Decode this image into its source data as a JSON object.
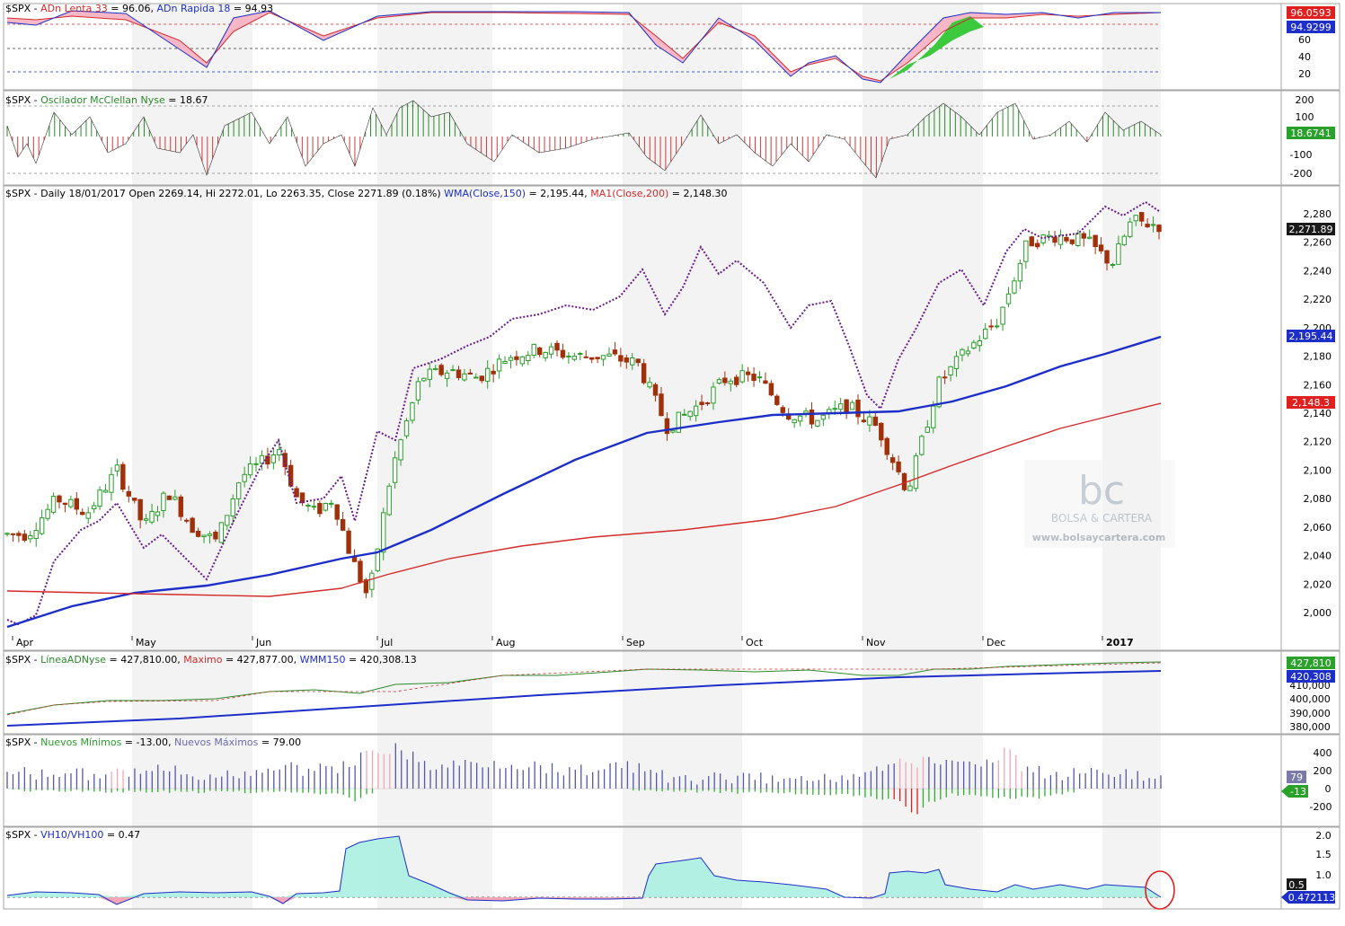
{
  "colors": {
    "bg": "#ffffff",
    "frame": "#a6a6a6",
    "shade": "#f3f3f3",
    "up_candle": "#2a9d2a",
    "down_candle": "#a0300a",
    "wma": "#1d2fc8",
    "ma200": "#d42a2a",
    "mcclellan_up": "#2a8a2a",
    "mcclellan_down": "#d03a3a",
    "adn_fill_red": "#f7b7c6",
    "adn_fill_green": "#3dc93d",
    "vh_fill": "#a6efe0",
    "new_highs": "#5555aa",
    "new_lows": "#33aa33",
    "price_badge": "#1a1a1a",
    "red_badge": "#e01f1f",
    "blue_badge": "#1d2fc8",
    "green_badge": "#2aa12a",
    "purple_line": "#6a1a8a",
    "highlight_circle": "#e02020"
  },
  "panels": {
    "adn": {
      "prefix": "$SPX - ",
      "lenta_label": "ADn Lenta 33",
      "lenta_value": " = 96.06, ",
      "rapida_label": "ADn Rapida 18",
      "rapida_value": " = 94.93",
      "ticks": [
        "60",
        "40",
        "20"
      ],
      "badge_red": "96.0593",
      "badge_blue": "94.9299"
    },
    "mcclellan": {
      "prefix": "$SPX - ",
      "label": "Oscilador McClellan Nyse",
      "value": " = 18.67",
      "ticks": [
        "200",
        "100",
        "-100",
        "-200"
      ],
      "badge": "18.6741"
    },
    "price": {
      "header_prefix": "$SPX - Daily 18/01/2017 Open 2269.14, Hi 2272.01, Lo 2263.35, Close 2271.89 (0.18%) ",
      "wma_label": "WMA(Close,150)",
      "wma_value": " = 2,195.44, ",
      "ma_label": "MA1(Close,200)",
      "ma_value": " = 2,148.30",
      "ticks": [
        "2,280",
        "2,260",
        "2,240",
        "2,220",
        "2,200",
        "2,180",
        "2,160",
        "2,140",
        "2,120",
        "2,100",
        "2,080",
        "2,060",
        "2,040",
        "2,020",
        "2,000"
      ],
      "badge_close": "2,271.89",
      "badge_wma": "2,195.44",
      "badge_ma": "2,148.3",
      "months": [
        "Apr",
        "May",
        "Jun",
        "Jul",
        "Aug",
        "Sep",
        "Oct",
        "Nov",
        "Dec",
        "2017"
      ]
    },
    "linea": {
      "prefix": "$SPX - ",
      "label": "LíneaADNyse",
      "value": " = 427,810.00, ",
      "max_label": "Maximo",
      "max_value": " = 427,877.00, ",
      "wmm_label": "WMM150",
      "wmm_value": " = 420,308.13",
      "ticks": [
        "410,000",
        "400,000",
        "390,000",
        "380,000"
      ],
      "badge_green": "427,810",
      "badge_blue": "420,308"
    },
    "nuevos": {
      "prefix": "$SPX - ",
      "min_label": "Nuevos Mínimos",
      "min_value": " = -13.00, ",
      "max_label": "Nuevos Máximos",
      "max_value": " = 79.00",
      "ticks": [
        "400",
        "200",
        "0",
        "-200"
      ],
      "badge_max": "79",
      "badge_min": "-13"
    },
    "vh": {
      "prefix": "$SPX - ",
      "label": "VH10/VH100",
      "value": " = 0.47",
      "ticks": [
        "2.0",
        "1.5",
        "1.0"
      ],
      "badge_ref": "0.5",
      "badge_value": "0.472113"
    }
  },
  "watermark": {
    "logo": "bc",
    "name": "BOLSA & CARTERA",
    "url": "www.bolsaycartera.com"
  },
  "chart_data": {
    "type": "candlestick",
    "title": "$SPX - Daily 18/01/2017",
    "x_range": [
      "2016-04",
      "2017-01-18"
    ],
    "y_range": [
      1990,
      2290
    ],
    "ohlc_last": {
      "open": 2269.14,
      "high": 2272.01,
      "low": 2263.35,
      "close": 2271.89,
      "change_pct": 0.18
    },
    "close_path": [
      [
        "Apr",
        2055
      ],
      [
        "Apr",
        2080
      ],
      [
        "Apr",
        2070
      ],
      [
        "Apr",
        2100
      ],
      [
        "May",
        2060
      ],
      [
        "May",
        2085
      ],
      [
        "May",
        2060
      ],
      [
        "May",
        2050
      ],
      [
        "May",
        2095
      ],
      [
        "Jun",
        2105
      ],
      [
        "Jun",
        2115
      ],
      [
        "Jun",
        2080
      ],
      [
        "Jun",
        2070
      ],
      [
        "Jun",
        2080
      ],
      [
        "Jun",
        2040
      ],
      [
        "Jun",
        2010
      ],
      [
        "Jul",
        2100
      ],
      [
        "Jul",
        2165
      ],
      [
        "Jul",
        2170
      ],
      [
        "Jul",
        2165
      ],
      [
        "Aug",
        2180
      ],
      [
        "Aug",
        2185
      ],
      [
        "Aug",
        2180
      ],
      [
        "Aug",
        2180
      ],
      [
        "Sep",
        2175
      ],
      [
        "Sep",
        2130
      ],
      [
        "Sep",
        2145
      ],
      [
        "Sep",
        2165
      ],
      [
        "Oct",
        2165
      ],
      [
        "Oct",
        2140
      ],
      [
        "Oct",
        2135
      ],
      [
        "Oct",
        2145
      ],
      [
        "Nov",
        2130
      ],
      [
        "Nov",
        2085
      ],
      [
        "Nov",
        2160
      ],
      [
        "Nov",
        2185
      ],
      [
        "Dec",
        2205
      ],
      [
        "Dec",
        2260
      ],
      [
        "Dec",
        2265
      ],
      [
        "Dec",
        2260
      ],
      [
        "2017",
        2245
      ],
      [
        "2017",
        2275
      ],
      [
        "2017",
        2271.89
      ]
    ],
    "series": [
      {
        "name": "WMA(Close,150)",
        "last": 2195.44
      },
      {
        "name": "MA1(Close,200)",
        "last": 2148.3
      },
      {
        "name": "LíneaADNyse",
        "last": 427810
      },
      {
        "name": "Maximo",
        "last": 427877
      },
      {
        "name": "WMM150",
        "last": 420308.13
      },
      {
        "name": "ADn Lenta 33",
        "last": 96.06
      },
      {
        "name": "ADn Rapida 18",
        "last": 94.93
      },
      {
        "name": "Oscilador McClellan Nyse",
        "last": 18.67
      },
      {
        "name": "Nuevos Mínimos",
        "last": -13.0
      },
      {
        "name": "Nuevos Máximos",
        "last": 79.0
      },
      {
        "name": "VH10/VH100",
        "last": 0.47
      }
    ]
  }
}
